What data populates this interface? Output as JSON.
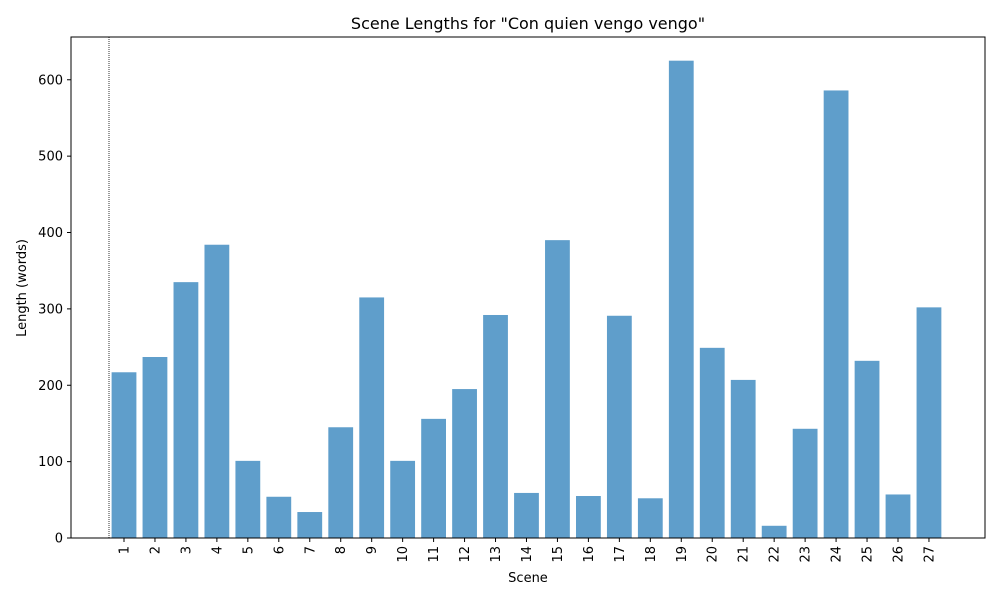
{
  "chart_data": {
    "type": "bar",
    "title": "Scene Lengths for \"Con quien vengo vengo\"",
    "xlabel": "Scene",
    "ylabel": "Length (words)",
    "categories": [
      "1",
      "2",
      "3",
      "4",
      "5",
      "6",
      "7",
      "8",
      "9",
      "10",
      "11",
      "12",
      "13",
      "14",
      "15",
      "16",
      "17",
      "18",
      "19",
      "20",
      "21",
      "22",
      "23",
      "24",
      "25",
      "26",
      "27"
    ],
    "values": [
      217,
      237,
      335,
      384,
      101,
      54,
      34,
      145,
      315,
      101,
      156,
      195,
      292,
      59,
      390,
      55,
      291,
      52,
      625,
      249,
      207,
      16,
      143,
      586,
      232,
      57,
      302
    ],
    "ylim": [
      0,
      656
    ],
    "yticks": [
      0,
      100,
      200,
      300,
      400,
      500,
      600
    ],
    "bar_color": "#5f9ecb",
    "grid": false,
    "marker_line": {
      "category": "1",
      "style": "dotted",
      "color": "#000000"
    }
  }
}
